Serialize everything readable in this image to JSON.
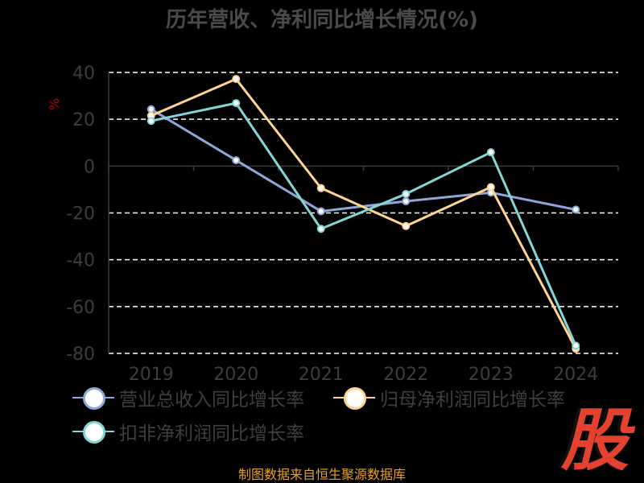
{
  "chart_data": {
    "type": "line",
    "title": "历年营收、净利同比增长情况(%)",
    "ylabel": "%",
    "xlabel": "",
    "categories": [
      "2019",
      "2020",
      "2021",
      "2022",
      "2023",
      "2024"
    ],
    "ylim": [
      -80,
      40
    ],
    "yticks": [
      40,
      20,
      0,
      -20,
      -40,
      -60,
      -80
    ],
    "grid": true,
    "legend_position": "bottom",
    "series": [
      {
        "name": "营业总收入同比增长率",
        "color": "#8ea6d8",
        "values": [
          24.3,
          2.5,
          -19.3,
          -15.0,
          -11.3,
          -18.6
        ]
      },
      {
        "name": "归母净利润同比增长率",
        "color": "#ffd391",
        "values": [
          21.5,
          37.2,
          -9.4,
          -25.6,
          -9.0,
          -78.0
        ]
      },
      {
        "name": "扣非净利润同比增长率",
        "color": "#84d6d6",
        "values": [
          19.3,
          26.9,
          -26.8,
          -11.9,
          5.9,
          -76.7
        ]
      }
    ]
  },
  "legend_items": [
    {
      "label": "营业总收入同比增长率",
      "color": "#8ea6d8"
    },
    {
      "label": "归母净利润同比增长率",
      "color": "#ffd391"
    },
    {
      "label": "扣非净利润同比增长率",
      "color": "#84d6d6"
    }
  ],
  "footer": "制图数据来自恒生聚源数据库",
  "logo_text": "股"
}
